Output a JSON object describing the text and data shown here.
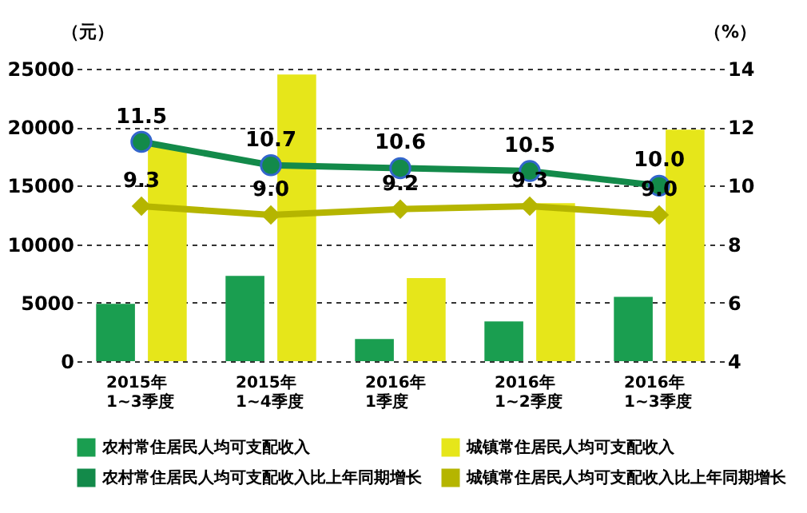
{
  "chart_data": {
    "type": "bar",
    "ylabel": "（元）",
    "y2label": "（%）",
    "categories": [
      "2015年\n1~3季度",
      "2015年\n1~4季度",
      "2016年\n1季度",
      "2016年\n1~2季度",
      "2016年\n1~3季度"
    ],
    "series": [
      {
        "name": "农村常住居民人均可支配收入",
        "color": "#1a9e50",
        "values": [
          4900,
          7300,
          1900,
          3400,
          5500
        ]
      },
      {
        "name": "城镇常住居民人均可支配收入",
        "color": "#e6e61a",
        "values": [
          18300,
          24500,
          7100,
          13500,
          19800
        ]
      },
      {
        "name": "农村常住居民人均可支配收入比上年同期增长",
        "type": "line",
        "axis": "y2",
        "marker": "circle",
        "color": "#138a4a",
        "values": [
          11.5,
          10.7,
          10.6,
          10.5,
          10.0
        ],
        "value_labels": [
          "11.5",
          "10.7",
          "10.6",
          "10.5",
          "10.0"
        ]
      },
      {
        "name": "城镇常住居民人均可支配收入比上年同期增长",
        "type": "line",
        "axis": "y2",
        "marker": "diamond",
        "color": "#b5b500",
        "values": [
          9.3,
          9.0,
          9.2,
          9.3,
          9.0
        ],
        "value_labels": [
          "9.3",
          "9.0",
          "9.2",
          "9.3",
          "9.0"
        ]
      }
    ],
    "ylim": [
      0,
      25000
    ],
    "yticks": [
      0,
      5000,
      10000,
      15000,
      20000,
      25000
    ],
    "y2lim": [
      4,
      14
    ],
    "y2ticks": [
      4,
      6,
      8,
      10,
      12,
      14
    ],
    "grid": "y",
    "legend": "bottom"
  }
}
